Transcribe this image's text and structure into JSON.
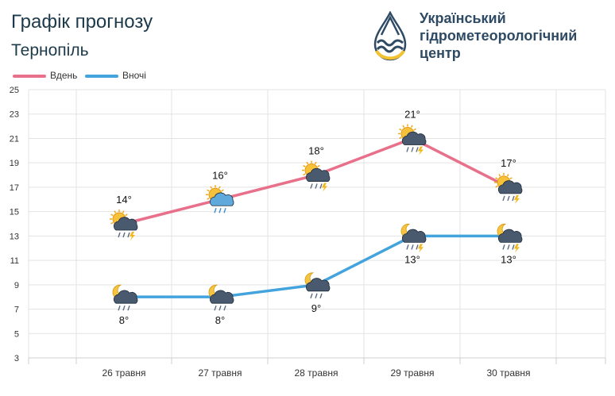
{
  "header": {
    "title": "Графік прогнозу",
    "city": "Тернопіль"
  },
  "logo": {
    "line1": "Український",
    "line2": "гідрометеорологічний",
    "line3": "центр",
    "colors": {
      "dark": "#2e4a64",
      "accent": "#f2c230"
    }
  },
  "legend": {
    "day_label": "Вдень",
    "night_label": "Вночі"
  },
  "colors": {
    "day": "#e8708a",
    "night": "#43a3dc",
    "grid": "#e3e3e3"
  },
  "chart_data": {
    "type": "line",
    "categories": [
      "26 травня",
      "27 травня",
      "28 травня",
      "29 травня",
      "30 травня"
    ],
    "series": [
      {
        "name": "Вдень",
        "values": [
          14,
          16,
          18,
          21,
          17
        ],
        "labels": [
          "14°",
          "16°",
          "18°",
          "21°",
          "17°"
        ],
        "icons": [
          "sun-cloud-rain-thunder-icon",
          "sun-cloud-rain-icon",
          "sun-cloud-rain-thunder-icon",
          "sun-cloud-rain-thunder-icon",
          "sun-cloud-rain-thunder-icon"
        ]
      },
      {
        "name": "Вночі",
        "values": [
          8,
          8,
          9,
          13,
          13
        ],
        "labels": [
          "8°",
          "8°",
          "9°",
          "13°",
          "13°"
        ],
        "icons": [
          "moon-cloud-rain-icon",
          "moon-cloud-rain-icon",
          "moon-cloud-rain-icon",
          "moon-cloud-rain-thunder-icon",
          "moon-cloud-rain-thunder-icon"
        ]
      }
    ],
    "yticks": [
      "3",
      "5",
      "7",
      "9",
      "11",
      "13",
      "15",
      "17",
      "19",
      "21",
      "23",
      "25"
    ],
    "ylim": [
      3,
      25
    ],
    "grid": true,
    "legend_position": "top-left"
  }
}
